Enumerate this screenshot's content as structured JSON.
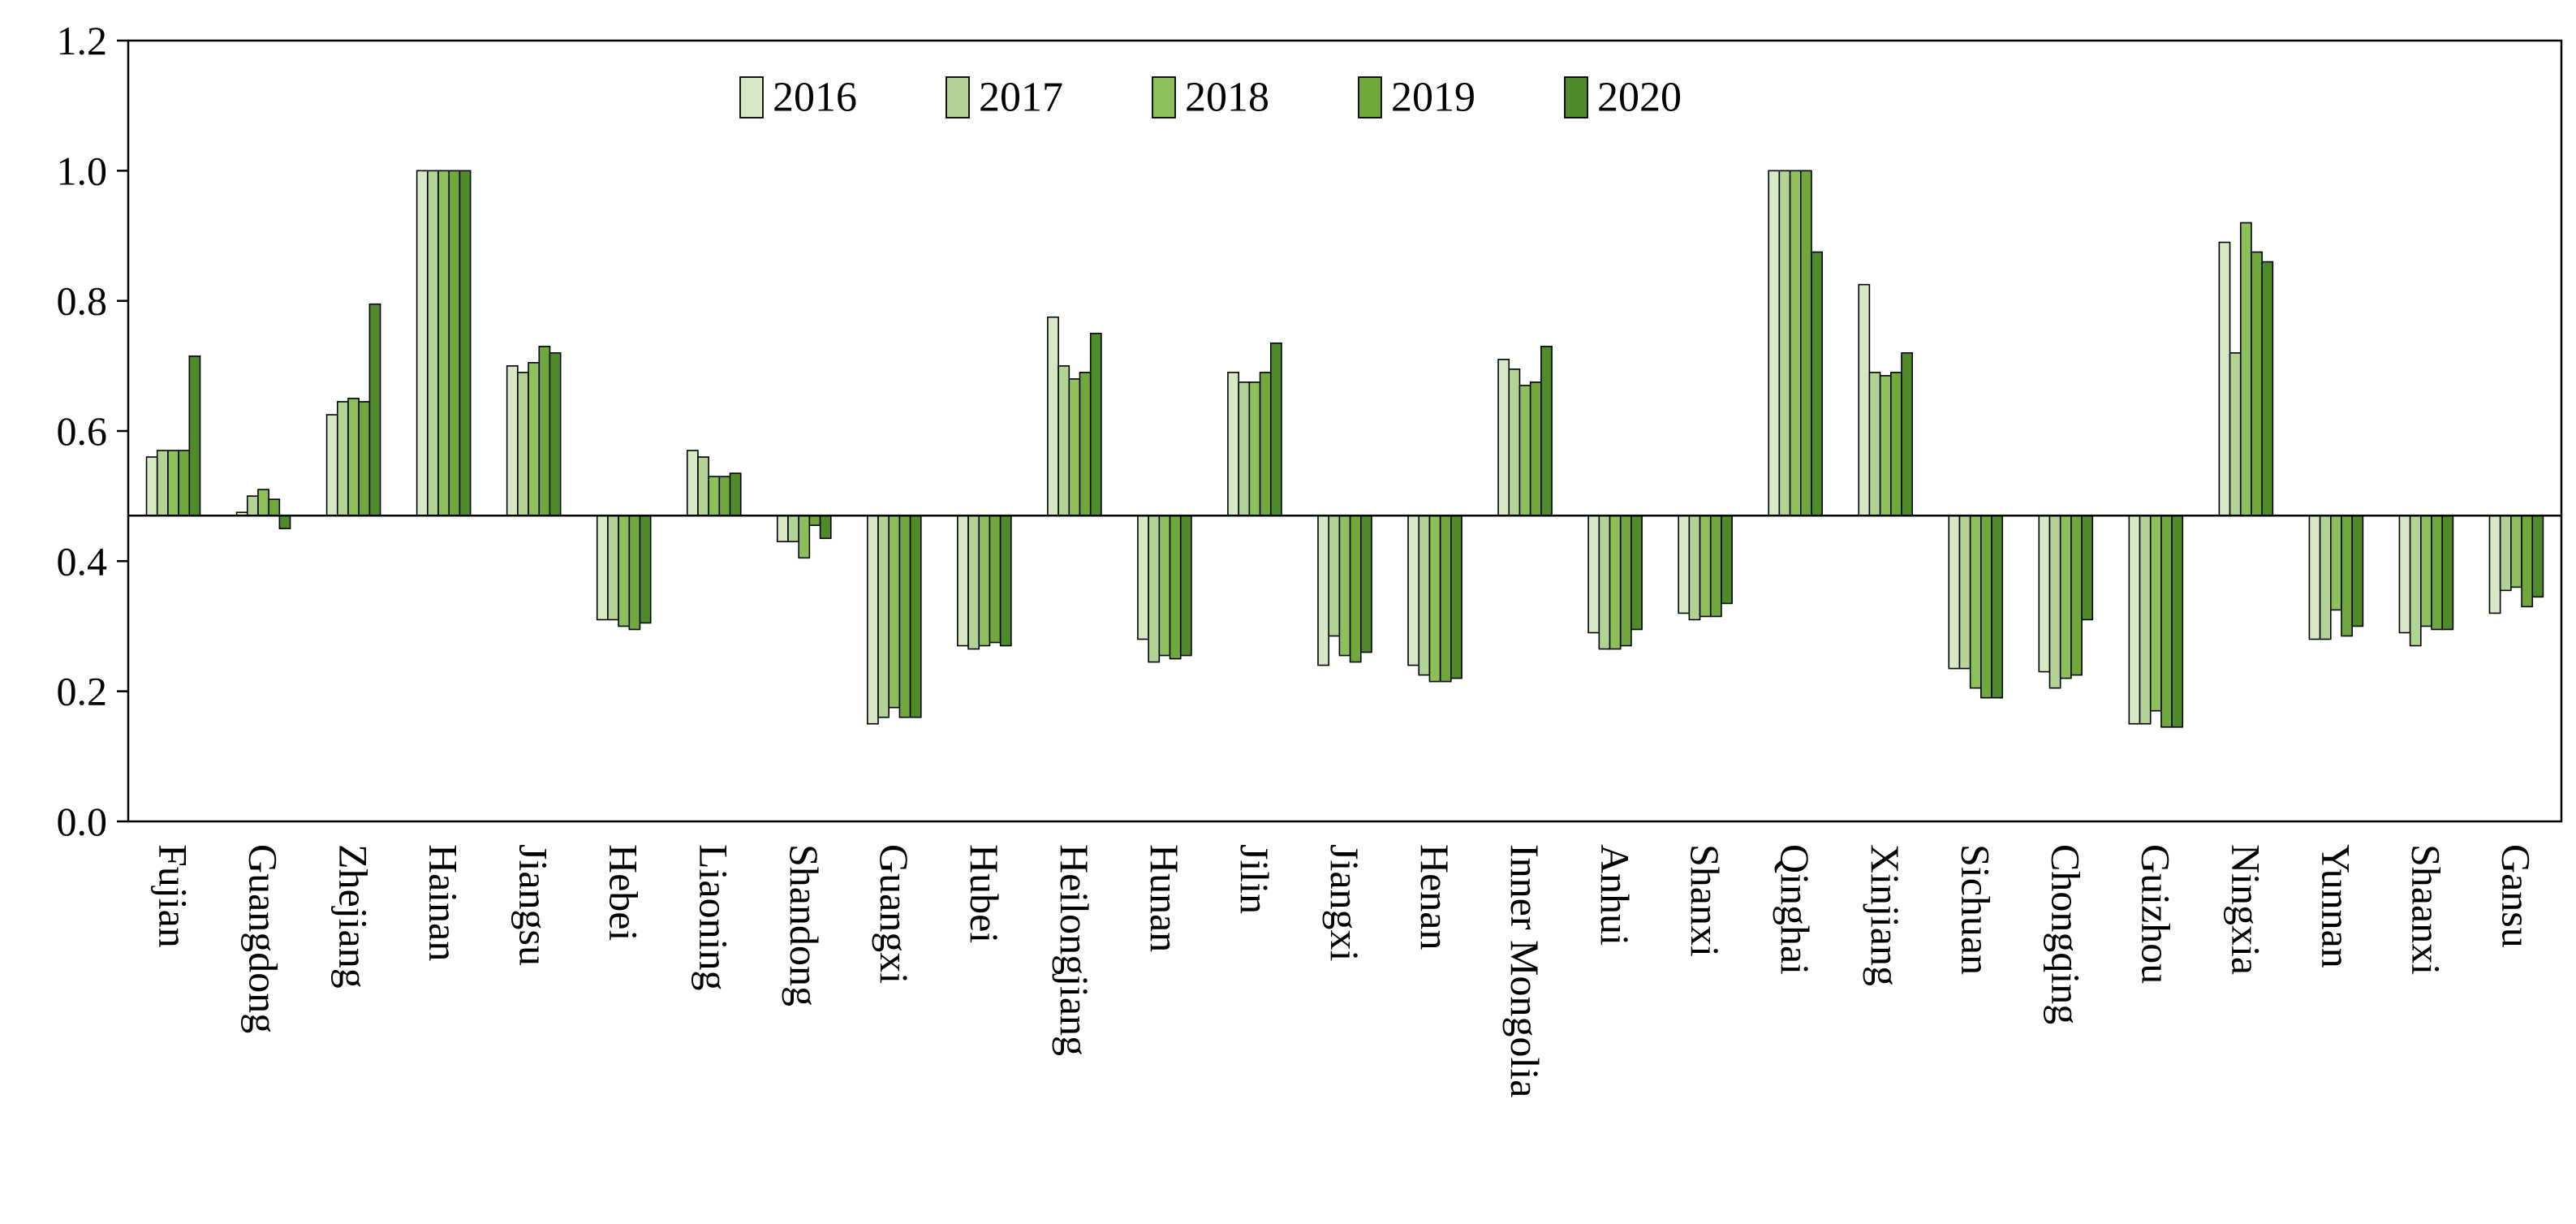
{
  "chart_data": {
    "type": "bar",
    "title": "",
    "xlabel": "",
    "ylabel": "",
    "baseline": 0.47,
    "ylim": [
      0,
      1.2
    ],
    "yticks": [
      "0.0",
      "0.2",
      "0.4",
      "0.6",
      "0.8",
      "1.0",
      "1.2"
    ],
    "ytick_values": [
      0,
      0.2,
      0.4,
      0.6,
      0.8,
      1.0,
      1.2
    ],
    "legend_position": "top-center",
    "categories": [
      "Fujian",
      "Guangdong",
      "Zhejiang",
      "Hainan",
      "Jiangsu",
      "Hebei",
      "Liaoning",
      "Shandong",
      "Guangxi",
      "Hubei",
      "Heilongjiang",
      "Hunan",
      "Jilin",
      "Jiangxi",
      "Henan",
      "Inner Mongolia",
      "Anhui",
      "Shanxi",
      "Qinghai",
      "Xinjiang",
      "Sichuan",
      "Chongqing",
      "Guizhou",
      "Ningxia",
      "Yunnan",
      "Shaanxi",
      "Gansu"
    ],
    "series": [
      {
        "name": "2016",
        "color": "#d6e8c4",
        "values": [
          0.56,
          0.475,
          0.625,
          1.0,
          0.7,
          0.31,
          0.57,
          0.43,
          0.15,
          0.27,
          0.775,
          0.28,
          0.69,
          0.24,
          0.24,
          0.71,
          0.29,
          0.32,
          1.0,
          0.825,
          0.235,
          0.23,
          0.15,
          0.89,
          0.28,
          0.29,
          0.32
        ]
      },
      {
        "name": "2017",
        "color": "#b3d394",
        "values": [
          0.57,
          0.5,
          0.645,
          1.0,
          0.69,
          0.31,
          0.56,
          0.43,
          0.16,
          0.265,
          0.7,
          0.245,
          0.675,
          0.285,
          0.225,
          0.695,
          0.265,
          0.31,
          1.0,
          0.69,
          0.235,
          0.205,
          0.15,
          0.72,
          0.28,
          0.27,
          0.355
        ]
      },
      {
        "name": "2018",
        "color": "#8dc05a",
        "values": [
          0.57,
          0.51,
          0.65,
          1.0,
          0.705,
          0.3,
          0.53,
          0.405,
          0.175,
          0.27,
          0.68,
          0.255,
          0.675,
          0.255,
          0.215,
          0.67,
          0.265,
          0.315,
          1.0,
          0.685,
          0.205,
          0.22,
          0.17,
          0.92,
          0.325,
          0.3,
          0.36
        ]
      },
      {
        "name": "2019",
        "color": "#70a83e",
        "values": [
          0.57,
          0.495,
          0.645,
          1.0,
          0.73,
          0.295,
          0.53,
          0.455,
          0.16,
          0.275,
          0.69,
          0.25,
          0.69,
          0.245,
          0.215,
          0.675,
          0.27,
          0.315,
          1.0,
          0.69,
          0.19,
          0.225,
          0.145,
          0.875,
          0.285,
          0.295,
          0.33
        ]
      },
      {
        "name": "2020",
        "color": "#4f8a2b",
        "values": [
          0.715,
          0.45,
          0.795,
          1.0,
          0.72,
          0.305,
          0.535,
          0.435,
          0.16,
          0.27,
          0.75,
          0.255,
          0.735,
          0.26,
          0.22,
          0.73,
          0.295,
          0.335,
          0.875,
          0.72,
          0.19,
          0.31,
          0.145,
          0.86,
          0.3,
          0.295,
          0.345
        ]
      }
    ]
  }
}
